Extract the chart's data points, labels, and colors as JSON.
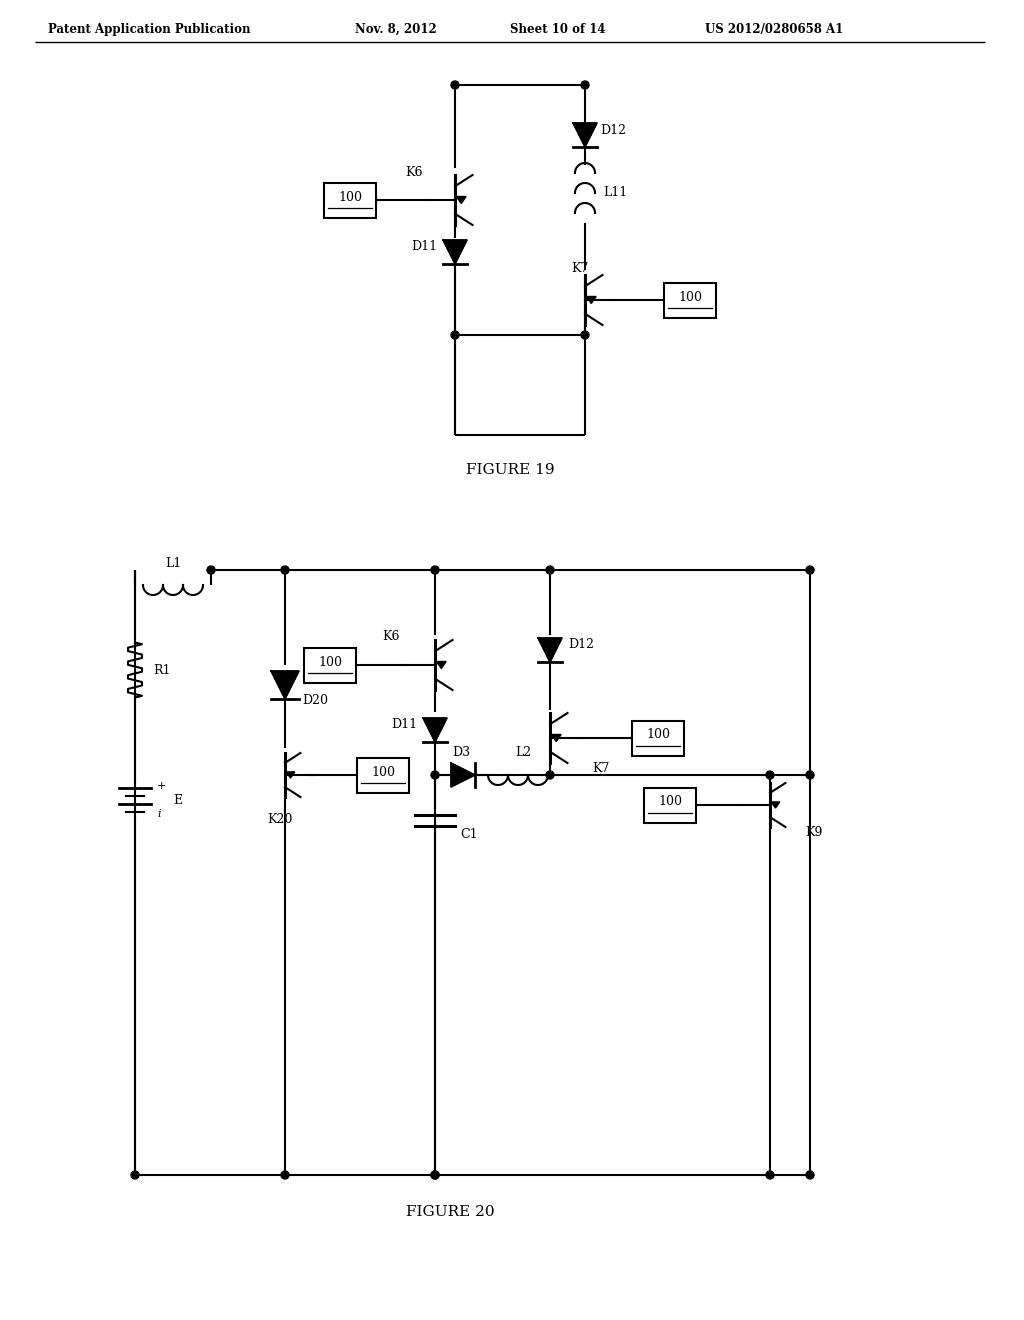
{
  "bg_color": "#ffffff",
  "header_text": "Patent Application Publication",
  "header_date": "Nov. 8, 2012",
  "header_sheet": "Sheet 10 of 14",
  "header_patent": "US 2012/0280658 A1",
  "fig19_label": "FIGURE 19",
  "fig20_label": "FIGURE 20",
  "fig_width": 10.24,
  "fig_height": 13.2
}
